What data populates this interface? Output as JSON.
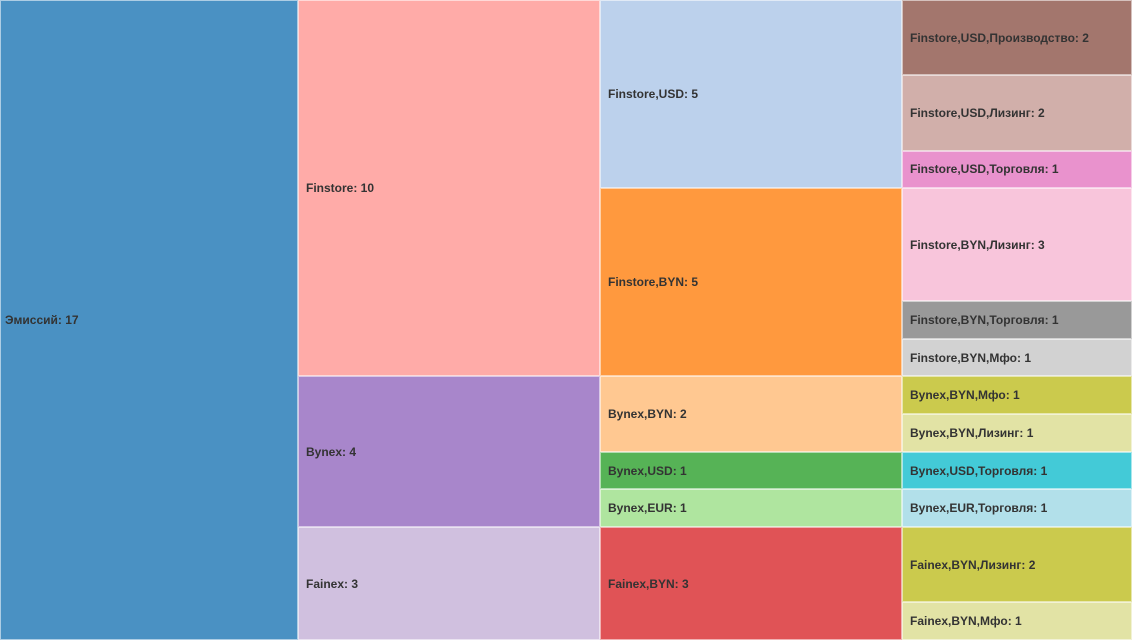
{
  "chart_data": {
    "type": "icicle",
    "title": "",
    "root": {
      "name": "Эмиссий",
      "value": 17,
      "color": "#4a91c3",
      "children": [
        {
          "name": "Finstore",
          "value": 10,
          "color": "#ffaba8",
          "children": [
            {
              "name": "Finstore,USD",
              "value": 5,
              "color": "#bcd1ec",
              "children": [
                {
                  "name": "Finstore,USD,Производство",
                  "value": 2,
                  "color": "#a3766d"
                },
                {
                  "name": "Finstore,USD,Лизинг",
                  "value": 2,
                  "color": "#d1afaa"
                },
                {
                  "name": "Finstore,USD,Торговля",
                  "value": 1,
                  "color": "#e992cd"
                }
              ]
            },
            {
              "name": "Finstore,BYN",
              "value": 5,
              "color": "#ff993e",
              "children": [
                {
                  "name": "Finstore,BYN,Лизинг",
                  "value": 3,
                  "color": "#f8c5db"
                },
                {
                  "name": "Finstore,BYN,Торговля",
                  "value": 1,
                  "color": "#999999"
                },
                {
                  "name": "Finstore,BYN,Мфо",
                  "value": 1,
                  "color": "#d2d2d2"
                }
              ]
            }
          ]
        },
        {
          "name": "Bynex",
          "value": 4,
          "color": "#a886cb",
          "children": [
            {
              "name": "Bynex,BYN",
              "value": 2,
              "color": "#ffc891",
              "children": [
                {
                  "name": "Bynex,BYN,Мфо",
                  "value": 1,
                  "color": "#cbca4d"
                },
                {
                  "name": "Bynex,BYN,Лизинг",
                  "value": 1,
                  "color": "#e2e3a5"
                }
              ]
            },
            {
              "name": "Bynex,USD",
              "value": 1,
              "color": "#56b356",
              "children": [
                {
                  "name": "Bynex,USD,Торговля",
                  "value": 1,
                  "color": "#43cad7"
                }
              ]
            },
            {
              "name": "Bynex,EUR",
              "value": 1,
              "color": "#afe59f",
              "children": [
                {
                  "name": "Bynex,EUR,Торговля",
                  "value": 1,
                  "color": "#b2e0ea"
                }
              ]
            }
          ]
        },
        {
          "name": "Fainex",
          "value": 3,
          "color": "#d0c0df",
          "children": [
            {
              "name": "Fainex,BYN",
              "value": 3,
              "color": "#e05356",
              "children": [
                {
                  "name": "Fainex,BYN,Лизинг",
                  "value": 2,
                  "color": "#cbca4d"
                },
                {
                  "name": "Fainex,BYN,Мфо",
                  "value": 1,
                  "color": "#e2e3a5"
                }
              ]
            }
          ]
        }
      ]
    },
    "legend": "none",
    "grid": false
  }
}
